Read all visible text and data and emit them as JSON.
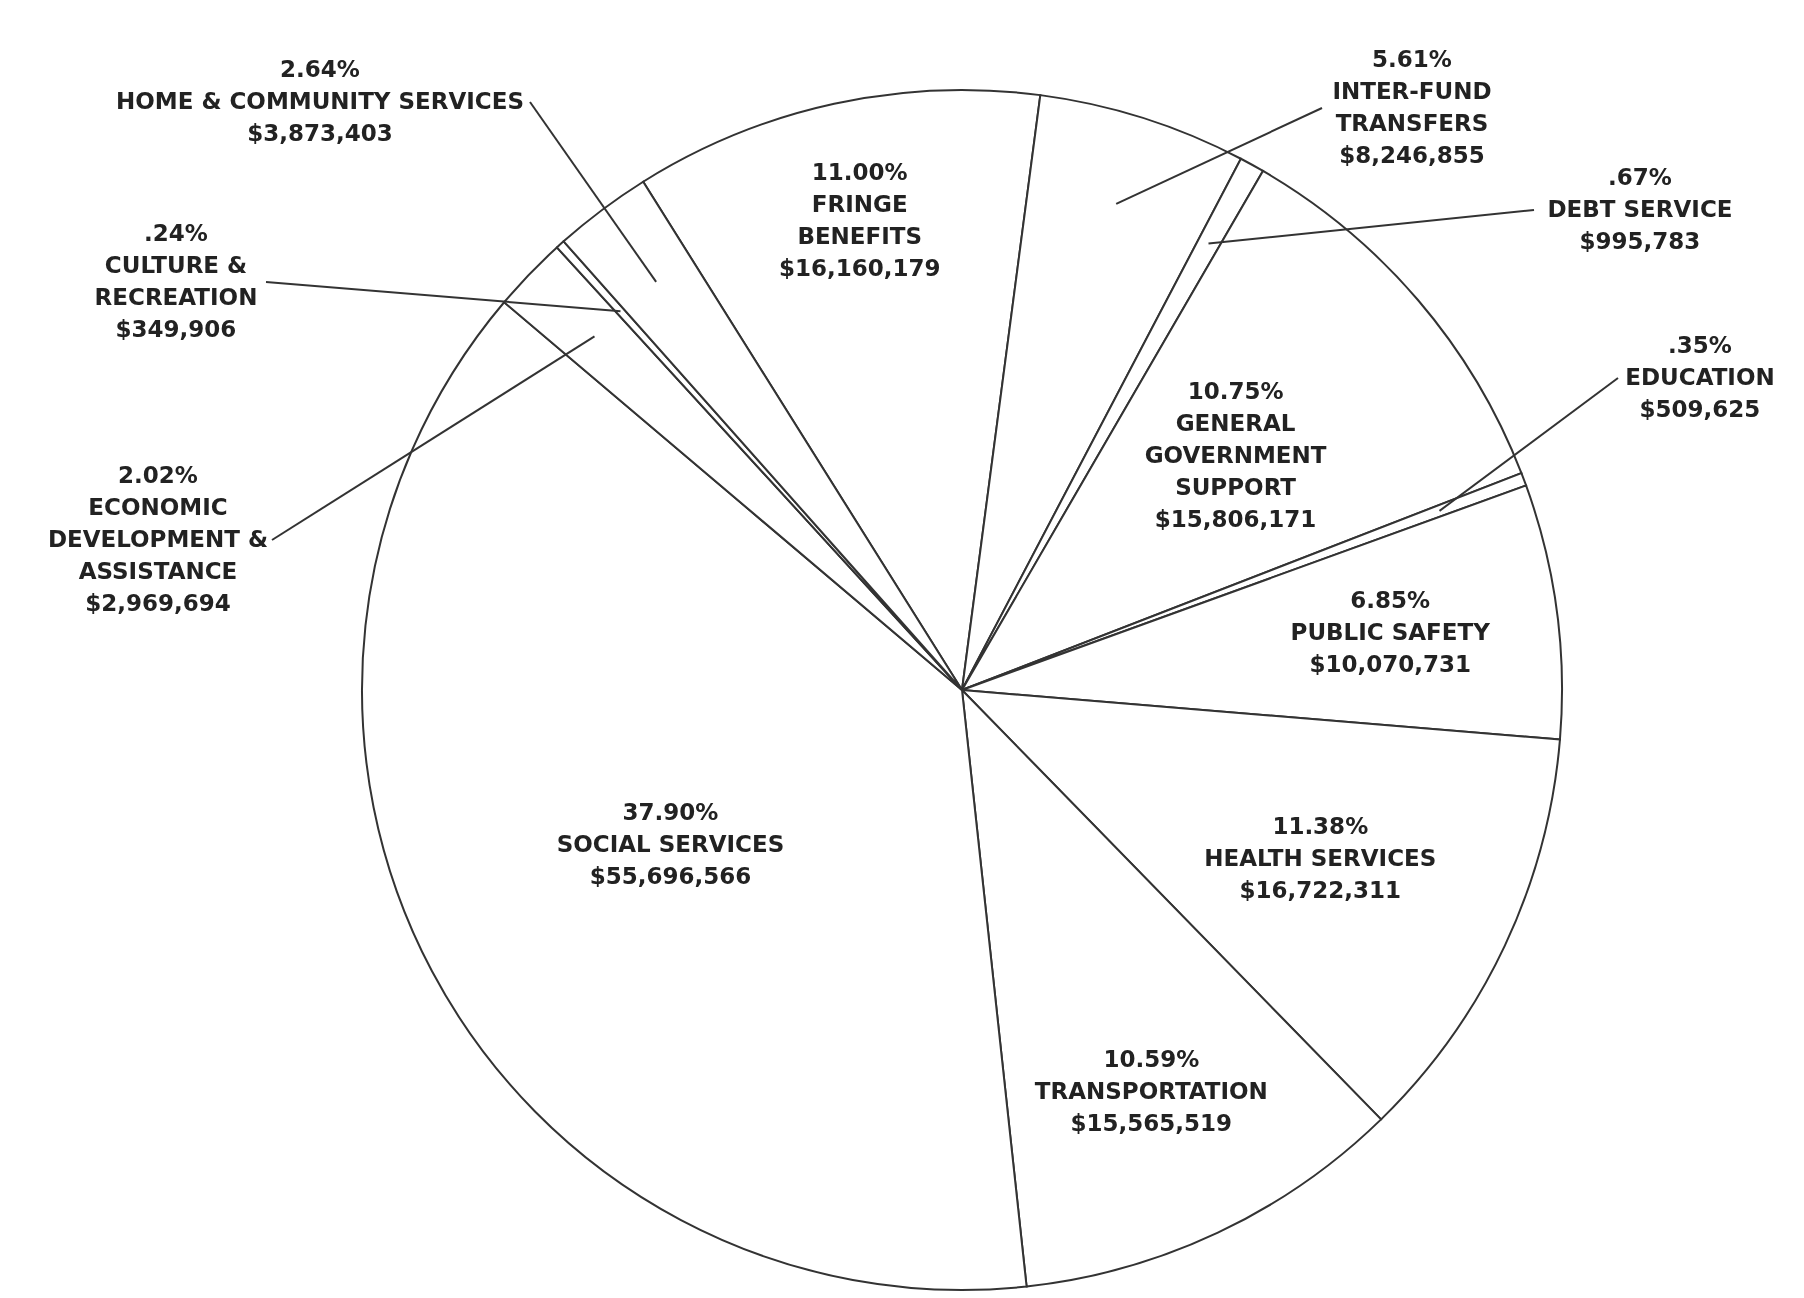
{
  "chart_data": {
    "type": "pie",
    "categories": [
      "FRINGE BENEFITS",
      "INTER-FUND TRANSFERS",
      "DEBT SERVICE",
      "GENERAL GOVERNMENT SUPPORT",
      "EDUCATION",
      "PUBLIC SAFETY",
      "HEALTH SERVICES",
      "TRANSPORTATION",
      "SOCIAL SERVICES",
      "ECONOMIC DEVELOPMENT & ASSISTANCE",
      "CULTURE & RECREATION",
      "HOME & COMMUNITY SERVICES"
    ],
    "values": [
      11.0,
      5.61,
      0.67,
      10.75,
      0.35,
      6.85,
      11.38,
      10.59,
      37.9,
      2.02,
      0.24,
      2.64
    ],
    "value_labels": [
      "11.00%\n$16,160,179",
      "5.61%\n$8,246,855",
      ".67%\n$995,783",
      "10.75%\n$15,806,171",
      ".35%\n$509,625",
      "6.85%\n$10,070,731",
      "11.38%\n$16,722,311",
      "10.59%\n$15,565,519",
      "37.90%\n$55,696,566",
      "2.02%\n$2,969,694",
      ".24%\n$349,906",
      "2.64%\n$3,873,403"
    ],
    "colors": [
      "#ffffff",
      "#ffffff",
      "#ffffff",
      "#ffffff",
      "#ffffff",
      "#ffffff",
      "#ffffff",
      "#ffffff",
      "#ffffff",
      "#ffffff",
      "#ffffff",
      "#ffffff"
    ]
  }
}
